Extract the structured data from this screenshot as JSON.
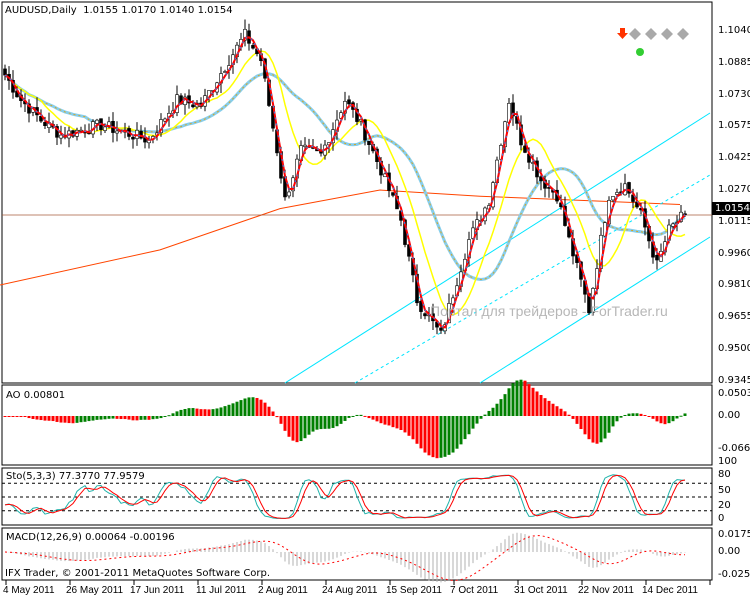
{
  "header": {
    "symbol": "AUDUSD,Daily",
    "ohlc": "1.0155 1.0170 1.0140 1.0154"
  },
  "price_axis": [
    "1.1040",
    "1.0885",
    "1.0730",
    "1.0575",
    "1.0425",
    "1.0270",
    "1.0115",
    "0.9960",
    "0.9810",
    "0.9655",
    "0.9500",
    "0.9345"
  ],
  "current_price": "1.0154",
  "watermark": "Портал для трейдеров - ForTrader.ru",
  "ao": {
    "label": "AO 0.00801",
    "axis": [
      "0.05031",
      "0.00",
      "-0.06621"
    ]
  },
  "stoch": {
    "label": "Sto(5,3,3) 77.3770 77.9579",
    "axis": [
      "100",
      "80",
      "50",
      "20",
      "0"
    ]
  },
  "macd": {
    "label": "MACD(12,26,9) 0.00064 -0.00196",
    "axis": [
      "0.01755",
      "0.00",
      "-0.02567"
    ]
  },
  "copyright": "IFX Trader, © 2001-2011 MetaQuotes Software Corp.",
  "dates": [
    "4 May 2011",
    "26 May 2011",
    "17 Jun 2011",
    "11 Jul 2011",
    "2 Aug 2011",
    "24 Aug 2011",
    "15 Sep 2011",
    "7 Oct 2011",
    "31 Oct 2011",
    "22 Nov 2011",
    "14 Dec 2011"
  ],
  "colors": {
    "up": "#ffffff",
    "down": "#000000",
    "fast_ma": "#ff0000",
    "mid_ma": "#ffff00",
    "slow_ma": "#87ceeb",
    "long_ma": "#ff4500",
    "channel": "#00e5ff",
    "ao_up": "#008000",
    "ao_down": "#ff0000",
    "stoch_main": "#20b2aa",
    "stoch_signal": "#ff0000"
  },
  "chart_data": {
    "type": "candlestick",
    "price_keyframes": [
      [
        0,
        1.0827
      ],
      [
        4,
        1.0706
      ],
      [
        9,
        1.0609
      ],
      [
        14,
        1.0536
      ],
      [
        24,
        1.0585
      ],
      [
        36,
        1.0512
      ],
      [
        43,
        1.0706
      ],
      [
        49,
        1.068
      ],
      [
        56,
        1.09
      ],
      [
        60,
        1.1021
      ],
      [
        64,
        1.09
      ],
      [
        68,
        1.0464
      ],
      [
        70,
        1.0222
      ],
      [
        74,
        1.0464
      ],
      [
        79,
        1.044
      ],
      [
        85,
        1.0706
      ],
      [
        89,
        1.0585
      ],
      [
        94,
        1.0367
      ],
      [
        99,
        1.0125
      ],
      [
        103,
        0.9738
      ],
      [
        109,
        0.9568
      ],
      [
        113,
        0.9834
      ],
      [
        116,
        1.0028
      ],
      [
        121,
        1.0222
      ],
      [
        126,
        1.0706
      ],
      [
        129,
        1.051
      ],
      [
        134,
        1.032
      ],
      [
        138,
        1.0246
      ],
      [
        141,
        1.0028
      ],
      [
        146,
        0.9689
      ],
      [
        149,
        1.0028
      ],
      [
        151,
        1.0246
      ],
      [
        155,
        1.0294
      ],
      [
        159,
        1.0149
      ],
      [
        163,
        0.9907
      ],
      [
        166,
        1.0076
      ],
      [
        170,
        1.0154
      ]
    ]
  }
}
